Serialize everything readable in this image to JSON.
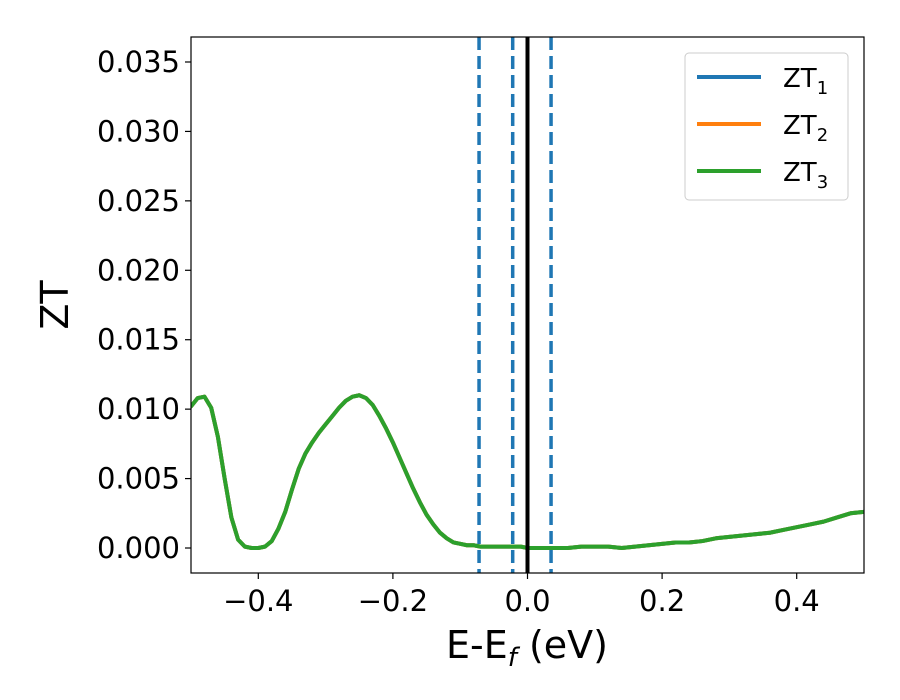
{
  "chart_data": {
    "type": "line",
    "xlabel": "E-E",
    "xlabel_sub": "f",
    "xlabel_unit": " (eV)",
    "ylabel": "ZT",
    "xlim": [
      -0.5,
      0.5
    ],
    "ylim": [
      -0.0018,
      0.0368
    ],
    "xticks": [
      -0.4,
      -0.2,
      0.0,
      0.2,
      0.4
    ],
    "xtick_labels": [
      "−0.4",
      "−0.2",
      "0.0",
      "0.2",
      "0.4"
    ],
    "yticks": [
      0.0,
      0.005,
      0.01,
      0.015,
      0.02,
      0.025,
      0.03,
      0.035
    ],
    "ytick_labels": [
      "0.000",
      "0.005",
      "0.010",
      "0.015",
      "0.020",
      "0.025",
      "0.030",
      "0.035"
    ],
    "legend_position": "top-right",
    "series": [
      {
        "name": "ZT",
        "sub": "1",
        "color": "#1f77b4",
        "x": [
          -0.5,
          -0.49,
          -0.48,
          -0.47,
          -0.46,
          -0.45,
          -0.44,
          -0.43,
          -0.42,
          -0.41,
          -0.4,
          -0.39,
          -0.38,
          -0.37,
          -0.36,
          -0.35,
          -0.34,
          -0.33,
          -0.32,
          -0.31,
          -0.3,
          -0.29,
          -0.28,
          -0.27,
          -0.26,
          -0.25,
          -0.24,
          -0.23,
          -0.22,
          -0.21,
          -0.2,
          -0.19,
          -0.18,
          -0.17,
          -0.16,
          -0.15,
          -0.14,
          -0.13,
          -0.12,
          -0.11,
          -0.1,
          -0.09,
          -0.08,
          -0.07,
          -0.06,
          -0.05,
          -0.04,
          -0.03,
          -0.02,
          -0.01,
          0.0,
          0.02,
          0.04,
          0.06,
          0.08,
          0.1,
          0.12,
          0.14,
          0.16,
          0.18,
          0.2,
          0.22,
          0.24,
          0.26,
          0.28,
          0.3,
          0.32,
          0.34,
          0.36,
          0.38,
          0.4,
          0.42,
          0.44,
          0.46,
          0.48,
          0.5
        ],
        "y": [
          0.0102,
          0.0108,
          0.0109,
          0.0101,
          0.008,
          0.005,
          0.0022,
          0.0006,
          0.0001,
          0.0,
          0.0,
          0.0001,
          0.0005,
          0.0014,
          0.0026,
          0.0042,
          0.0057,
          0.0068,
          0.0076,
          0.0083,
          0.0089,
          0.0095,
          0.0101,
          0.0106,
          0.0109,
          0.011,
          0.0108,
          0.0103,
          0.0095,
          0.0086,
          0.0076,
          0.0065,
          0.0054,
          0.0043,
          0.0033,
          0.0024,
          0.0017,
          0.0011,
          0.0007,
          0.0004,
          0.0003,
          0.0002,
          0.0002,
          0.0001,
          0.0001,
          0.0001,
          0.0001,
          0.0001,
          0.0001,
          0.0001,
          0.0,
          0.0,
          0.0,
          0.0,
          0.0001,
          0.0001,
          0.0001,
          0.0,
          0.0001,
          0.0002,
          0.0003,
          0.0004,
          0.0004,
          0.0005,
          0.0007,
          0.0008,
          0.0009,
          0.001,
          0.0011,
          0.0013,
          0.0015,
          0.0017,
          0.0019,
          0.0022,
          0.0025,
          0.0026
        ]
      },
      {
        "name": "ZT",
        "sub": "2",
        "color": "#ff7f0e",
        "x": [
          -0.5,
          -0.49,
          -0.48,
          -0.47,
          -0.46,
          -0.45,
          -0.44,
          -0.43,
          -0.42,
          -0.41,
          -0.4,
          -0.39,
          -0.38,
          -0.37,
          -0.36,
          -0.35,
          -0.34,
          -0.33,
          -0.32,
          -0.31,
          -0.3,
          -0.29,
          -0.28,
          -0.27,
          -0.26,
          -0.25,
          -0.24,
          -0.23,
          -0.22,
          -0.21,
          -0.2,
          -0.19,
          -0.18,
          -0.17,
          -0.16,
          -0.15,
          -0.14,
          -0.13,
          -0.12,
          -0.11,
          -0.1,
          -0.09,
          -0.08,
          -0.07,
          -0.06,
          -0.05,
          -0.04,
          -0.03,
          -0.02,
          -0.01,
          0.0,
          0.02,
          0.04,
          0.06,
          0.08,
          0.1,
          0.12,
          0.14,
          0.16,
          0.18,
          0.2,
          0.22,
          0.24,
          0.26,
          0.28,
          0.3,
          0.32,
          0.34,
          0.36,
          0.38,
          0.4,
          0.42,
          0.44,
          0.46,
          0.48,
          0.5
        ],
        "y": [
          0.0102,
          0.0108,
          0.0109,
          0.0101,
          0.008,
          0.005,
          0.0022,
          0.0006,
          0.0001,
          0.0,
          0.0,
          0.0001,
          0.0005,
          0.0014,
          0.0026,
          0.0042,
          0.0057,
          0.0068,
          0.0076,
          0.0083,
          0.0089,
          0.0095,
          0.0101,
          0.0106,
          0.0109,
          0.011,
          0.0108,
          0.0103,
          0.0095,
          0.0086,
          0.0076,
          0.0065,
          0.0054,
          0.0043,
          0.0033,
          0.0024,
          0.0017,
          0.0011,
          0.0007,
          0.0004,
          0.0003,
          0.0002,
          0.0002,
          0.0001,
          0.0001,
          0.0001,
          0.0001,
          0.0001,
          0.0001,
          0.0001,
          0.0,
          0.0,
          0.0,
          0.0,
          0.0001,
          0.0001,
          0.0001,
          0.0,
          0.0001,
          0.0002,
          0.0003,
          0.0004,
          0.0004,
          0.0005,
          0.0007,
          0.0008,
          0.0009,
          0.001,
          0.0011,
          0.0013,
          0.0015,
          0.0017,
          0.0019,
          0.0022,
          0.0025,
          0.0026
        ]
      },
      {
        "name": "ZT",
        "sub": "3",
        "color": "#2ca02c",
        "x": [
          -0.5,
          -0.49,
          -0.48,
          -0.47,
          -0.46,
          -0.45,
          -0.44,
          -0.43,
          -0.42,
          -0.41,
          -0.4,
          -0.39,
          -0.38,
          -0.37,
          -0.36,
          -0.35,
          -0.34,
          -0.33,
          -0.32,
          -0.31,
          -0.3,
          -0.29,
          -0.28,
          -0.27,
          -0.26,
          -0.25,
          -0.24,
          -0.23,
          -0.22,
          -0.21,
          -0.2,
          -0.19,
          -0.18,
          -0.17,
          -0.16,
          -0.15,
          -0.14,
          -0.13,
          -0.12,
          -0.11,
          -0.1,
          -0.09,
          -0.08,
          -0.07,
          -0.06,
          -0.05,
          -0.04,
          -0.03,
          -0.02,
          -0.01,
          0.0,
          0.02,
          0.04,
          0.06,
          0.08,
          0.1,
          0.12,
          0.14,
          0.16,
          0.18,
          0.2,
          0.22,
          0.24,
          0.26,
          0.28,
          0.3,
          0.32,
          0.34,
          0.36,
          0.38,
          0.4,
          0.42,
          0.44,
          0.46,
          0.48,
          0.5
        ],
        "y": [
          0.0102,
          0.0108,
          0.0109,
          0.0101,
          0.008,
          0.005,
          0.0022,
          0.0006,
          0.0001,
          0.0,
          0.0,
          0.0001,
          0.0005,
          0.0014,
          0.0026,
          0.0042,
          0.0057,
          0.0068,
          0.0076,
          0.0083,
          0.0089,
          0.0095,
          0.0101,
          0.0106,
          0.0109,
          0.011,
          0.0108,
          0.0103,
          0.0095,
          0.0086,
          0.0076,
          0.0065,
          0.0054,
          0.0043,
          0.0033,
          0.0024,
          0.0017,
          0.0011,
          0.0007,
          0.0004,
          0.0003,
          0.0002,
          0.0002,
          0.0001,
          0.0001,
          0.0001,
          0.0001,
          0.0001,
          0.0001,
          0.0001,
          0.0,
          0.0,
          0.0,
          0.0,
          0.0001,
          0.0001,
          0.0001,
          0.0,
          0.0001,
          0.0002,
          0.0003,
          0.0004,
          0.0004,
          0.0005,
          0.0007,
          0.0008,
          0.0009,
          0.001,
          0.0011,
          0.0013,
          0.0015,
          0.0017,
          0.0019,
          0.0022,
          0.0025,
          0.0026
        ]
      }
    ],
    "vlines": [
      {
        "x": -0.072,
        "style": "dashed",
        "color": "#1f77b4"
      },
      {
        "x": -0.022,
        "style": "dashed",
        "color": "#1f77b4"
      },
      {
        "x": 0.0,
        "style": "solid",
        "color": "#000000"
      },
      {
        "x": 0.035,
        "style": "dashed",
        "color": "#1f77b4"
      }
    ]
  }
}
